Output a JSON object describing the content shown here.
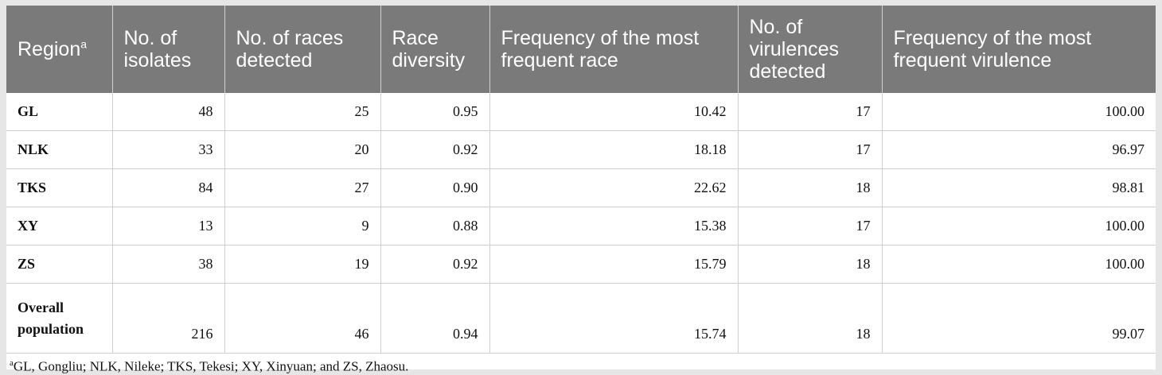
{
  "table": {
    "headers": [
      {
        "text": "Region",
        "sup": "a"
      },
      {
        "text": "No. of isolates",
        "sup": ""
      },
      {
        "text": "No. of races detected",
        "sup": ""
      },
      {
        "text": "Race diversity",
        "sup": ""
      },
      {
        "text": "Frequency of the most frequent race",
        "sup": ""
      },
      {
        "text": "No. of virulences detected",
        "sup": ""
      },
      {
        "text": "Frequency of the most frequent virulence",
        "sup": ""
      }
    ],
    "rows": [
      [
        "GL",
        "48",
        "25",
        "0.95",
        "10.42",
        "17",
        "100.00"
      ],
      [
        "NLK",
        "33",
        "20",
        "0.92",
        "18.18",
        "17",
        "96.97"
      ],
      [
        "TKS",
        "84",
        "27",
        "0.90",
        "22.62",
        "18",
        "98.81"
      ],
      [
        "XY",
        "13",
        "9",
        "0.88",
        "15.38",
        "17",
        "100.00"
      ],
      [
        "ZS",
        "38",
        "19",
        "0.92",
        "15.79",
        "18",
        "100.00"
      ],
      [
        "Overall population",
        "216",
        "46",
        "0.94",
        "15.74",
        "18",
        "99.07"
      ]
    ]
  },
  "footnote": {
    "marker": "a",
    "text": "GL, Gongliu; NLK, Nileke; TKS, Tekesi; XY, Xinyuan; and ZS, Zhaosu."
  }
}
